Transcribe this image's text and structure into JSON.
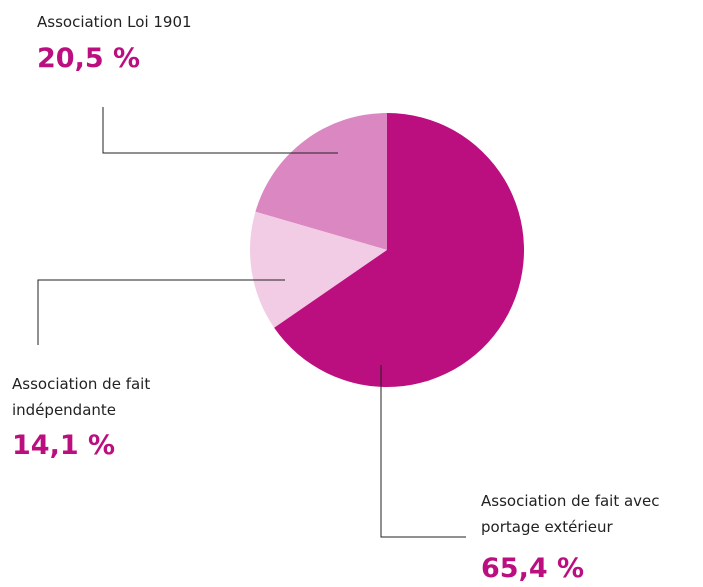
{
  "chart_data": {
    "type": "pie",
    "categories": [
      "Association de fait avec portage extérieur",
      "Association de fait indépendante",
      "Association Loi 1901"
    ],
    "values": [
      65.4,
      14.1,
      20.5
    ],
    "value_labels": [
      "65,4 %",
      "14,1 %",
      "20,5 %"
    ],
    "colors": [
      "#bb0e7f",
      "#f2cce4",
      "#db88c2"
    ],
    "label_color": "#bb0e7f"
  }
}
